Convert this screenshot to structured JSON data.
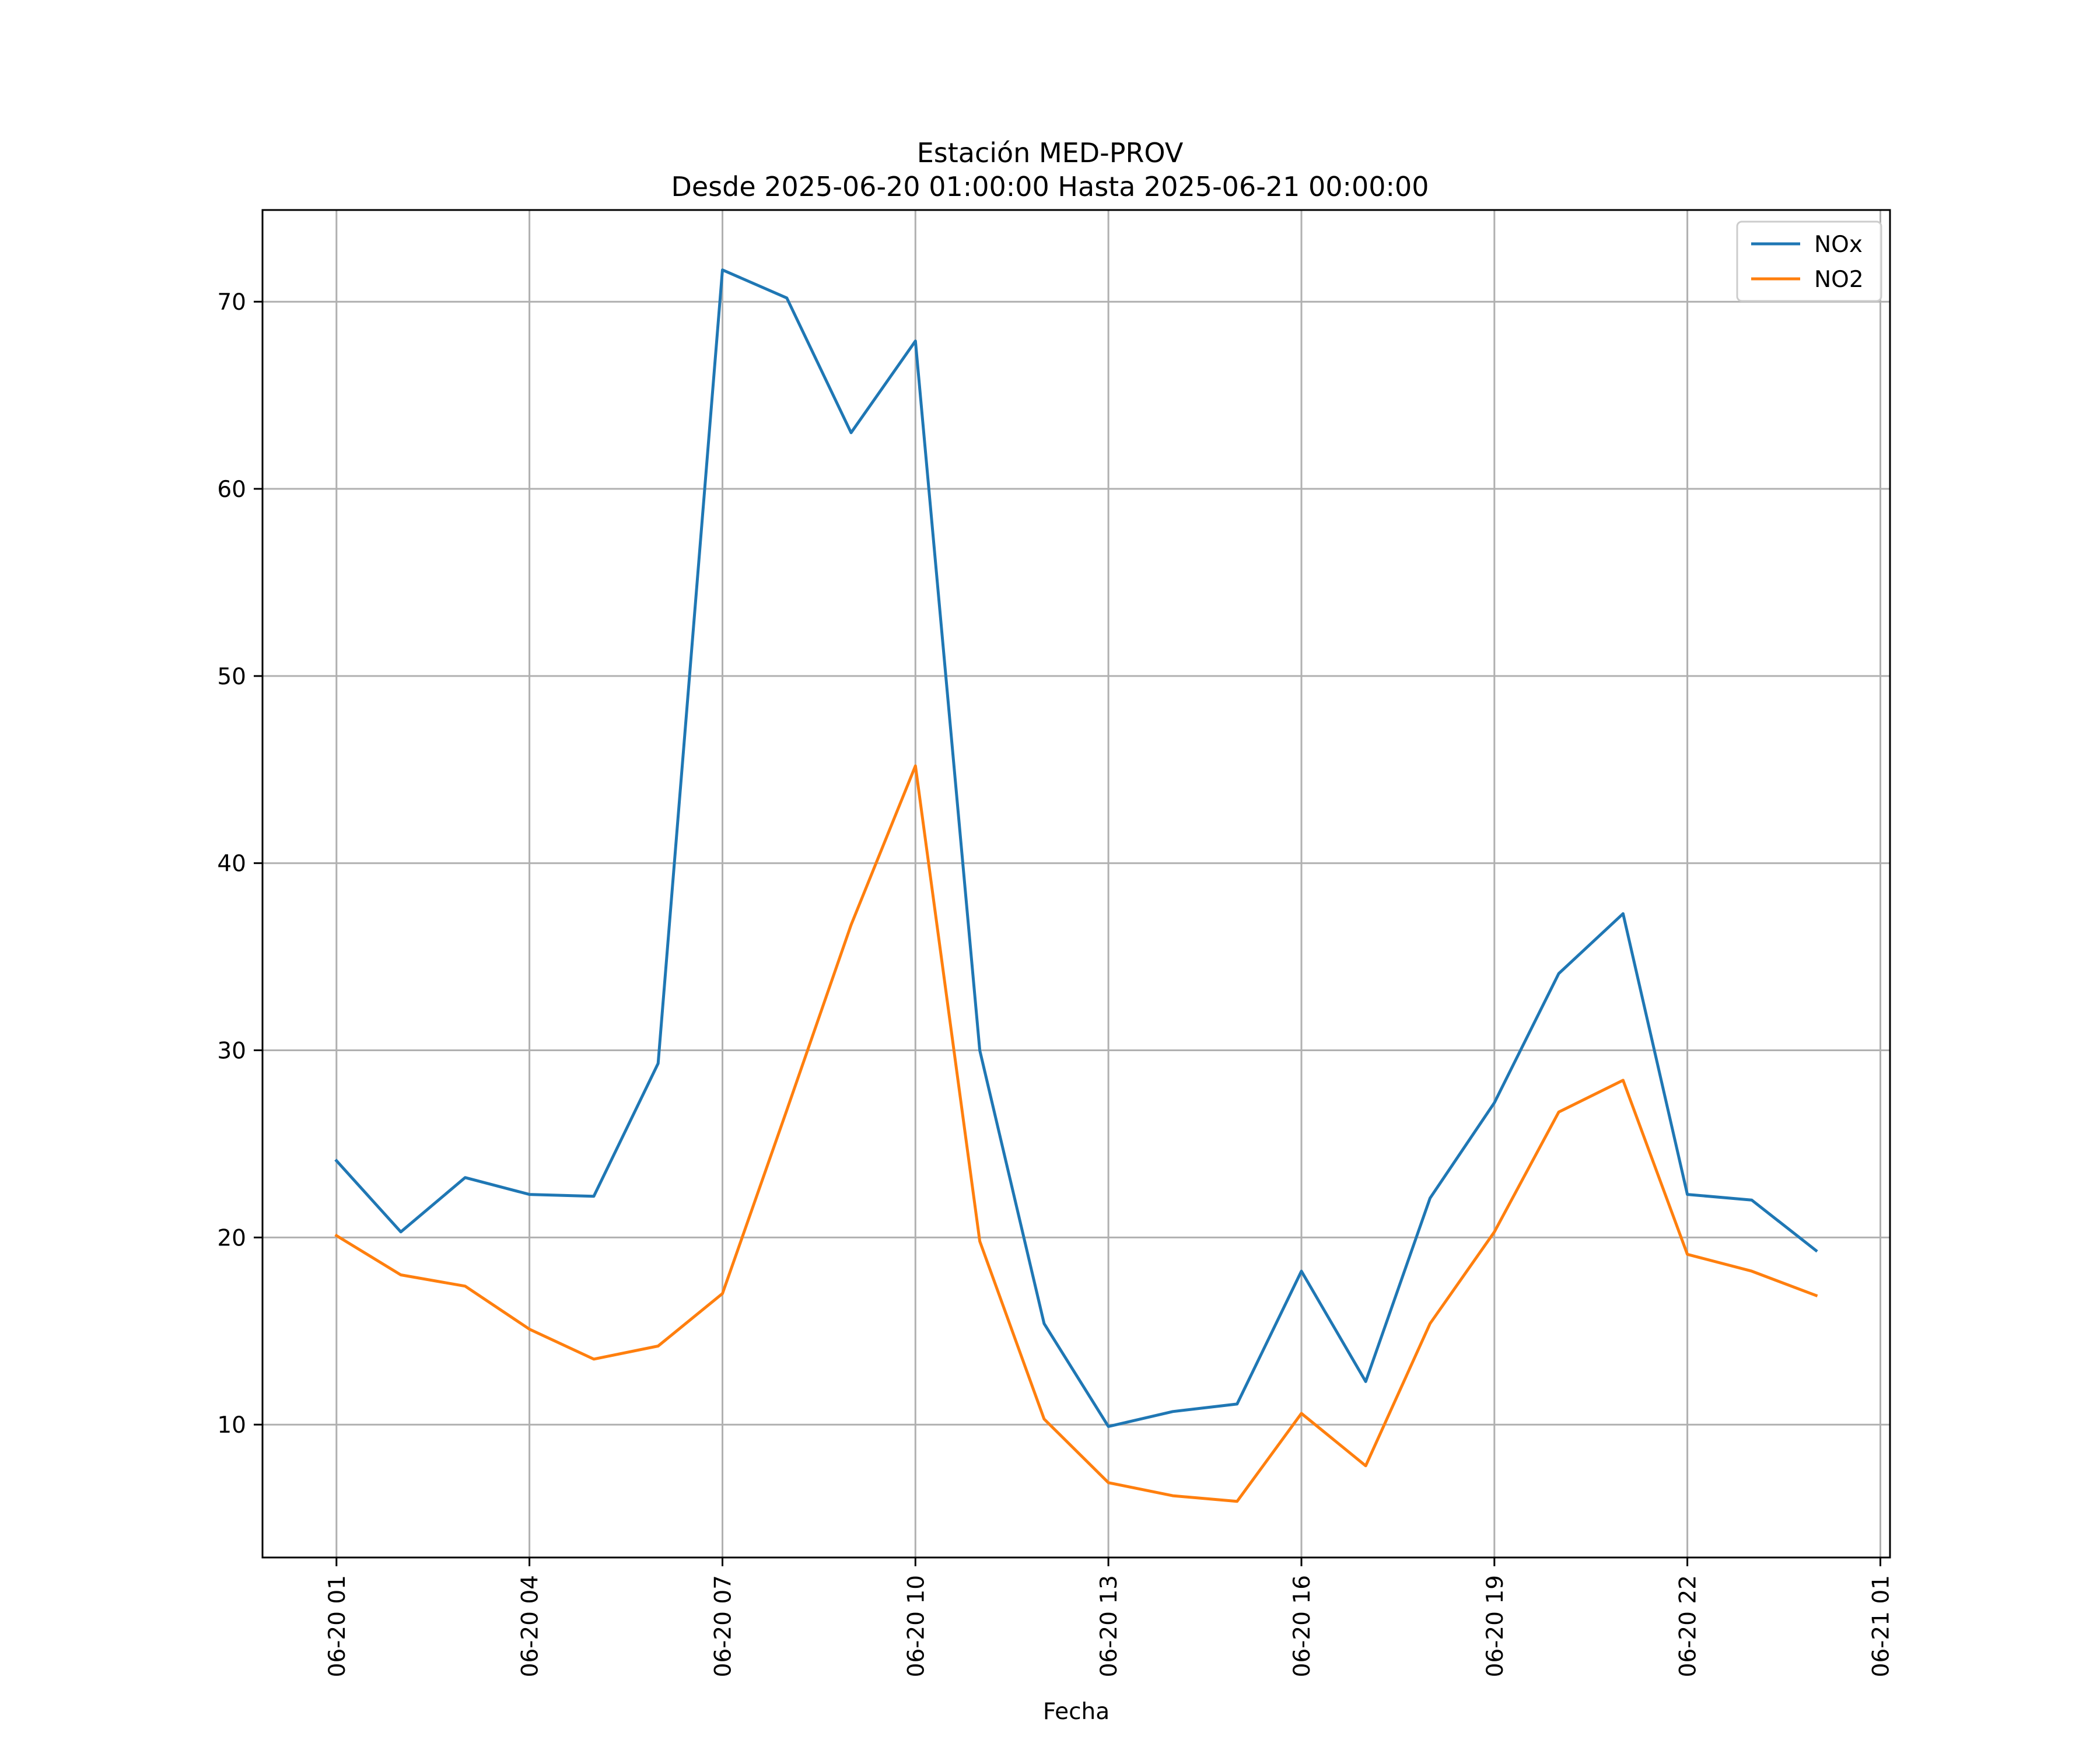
{
  "chart_data": {
    "type": "line",
    "title": "Estación MED-PROV",
    "subtitle": "Desde 2025-06-20 01:00:00 Hasta 2025-06-21 00:00:00",
    "xlabel": "Fecha",
    "ylabel": "",
    "x": [
      "2025-06-20 01:00",
      "2025-06-20 02:00",
      "2025-06-20 03:00",
      "2025-06-20 04:00",
      "2025-06-20 05:00",
      "2025-06-20 06:00",
      "2025-06-20 07:00",
      "2025-06-20 08:00",
      "2025-06-20 09:00",
      "2025-06-20 10:00",
      "2025-06-20 11:00",
      "2025-06-20 12:00",
      "2025-06-20 13:00",
      "2025-06-20 14:00",
      "2025-06-20 15:00",
      "2025-06-20 16:00",
      "2025-06-20 17:00",
      "2025-06-20 18:00",
      "2025-06-20 19:00",
      "2025-06-20 20:00",
      "2025-06-20 21:00",
      "2025-06-20 22:00",
      "2025-06-20 23:00",
      "2025-06-21 00:00"
    ],
    "xlim": [
      "2025-06-19 23:51",
      "2025-06-21 01:09"
    ],
    "xticks": [
      {
        "value": "2025-06-20 01:00",
        "label": "06-20 01"
      },
      {
        "value": "2025-06-20 04:00",
        "label": "06-20 04"
      },
      {
        "value": "2025-06-20 07:00",
        "label": "06-20 07"
      },
      {
        "value": "2025-06-20 10:00",
        "label": "06-20 10"
      },
      {
        "value": "2025-06-20 13:00",
        "label": "06-20 13"
      },
      {
        "value": "2025-06-20 16:00",
        "label": "06-20 16"
      },
      {
        "value": "2025-06-20 19:00",
        "label": "06-20 19"
      },
      {
        "value": "2025-06-20 22:00",
        "label": "06-20 22"
      },
      {
        "value": "2025-06-21 01:00",
        "label": "06-21 01"
      }
    ],
    "ylim": [
      2.9,
      74.9
    ],
    "yticks": [
      10,
      20,
      30,
      40,
      50,
      60,
      70
    ],
    "grid": true,
    "legend_position": "upper-right",
    "series": [
      {
        "name": "NOx",
        "color": "#1f77b4",
        "values": [
          24.1,
          20.3,
          23.2,
          22.3,
          22.2,
          29.3,
          71.7,
          70.2,
          63.0,
          67.9,
          30.0,
          15.4,
          9.9,
          10.7,
          11.1,
          18.2,
          12.3,
          22.1,
          27.2,
          34.1,
          37.3,
          22.3,
          22.0,
          19.3
        ]
      },
      {
        "name": "NO2",
        "color": "#ff7f0e",
        "values": [
          20.1,
          18.0,
          17.4,
          15.1,
          13.5,
          14.2,
          17.0,
          26.8,
          36.7,
          45.2,
          19.8,
          10.3,
          6.9,
          6.2,
          5.9,
          10.6,
          7.8,
          15.4,
          20.3,
          26.7,
          28.4,
          19.1,
          18.2,
          16.9
        ]
      }
    ]
  }
}
